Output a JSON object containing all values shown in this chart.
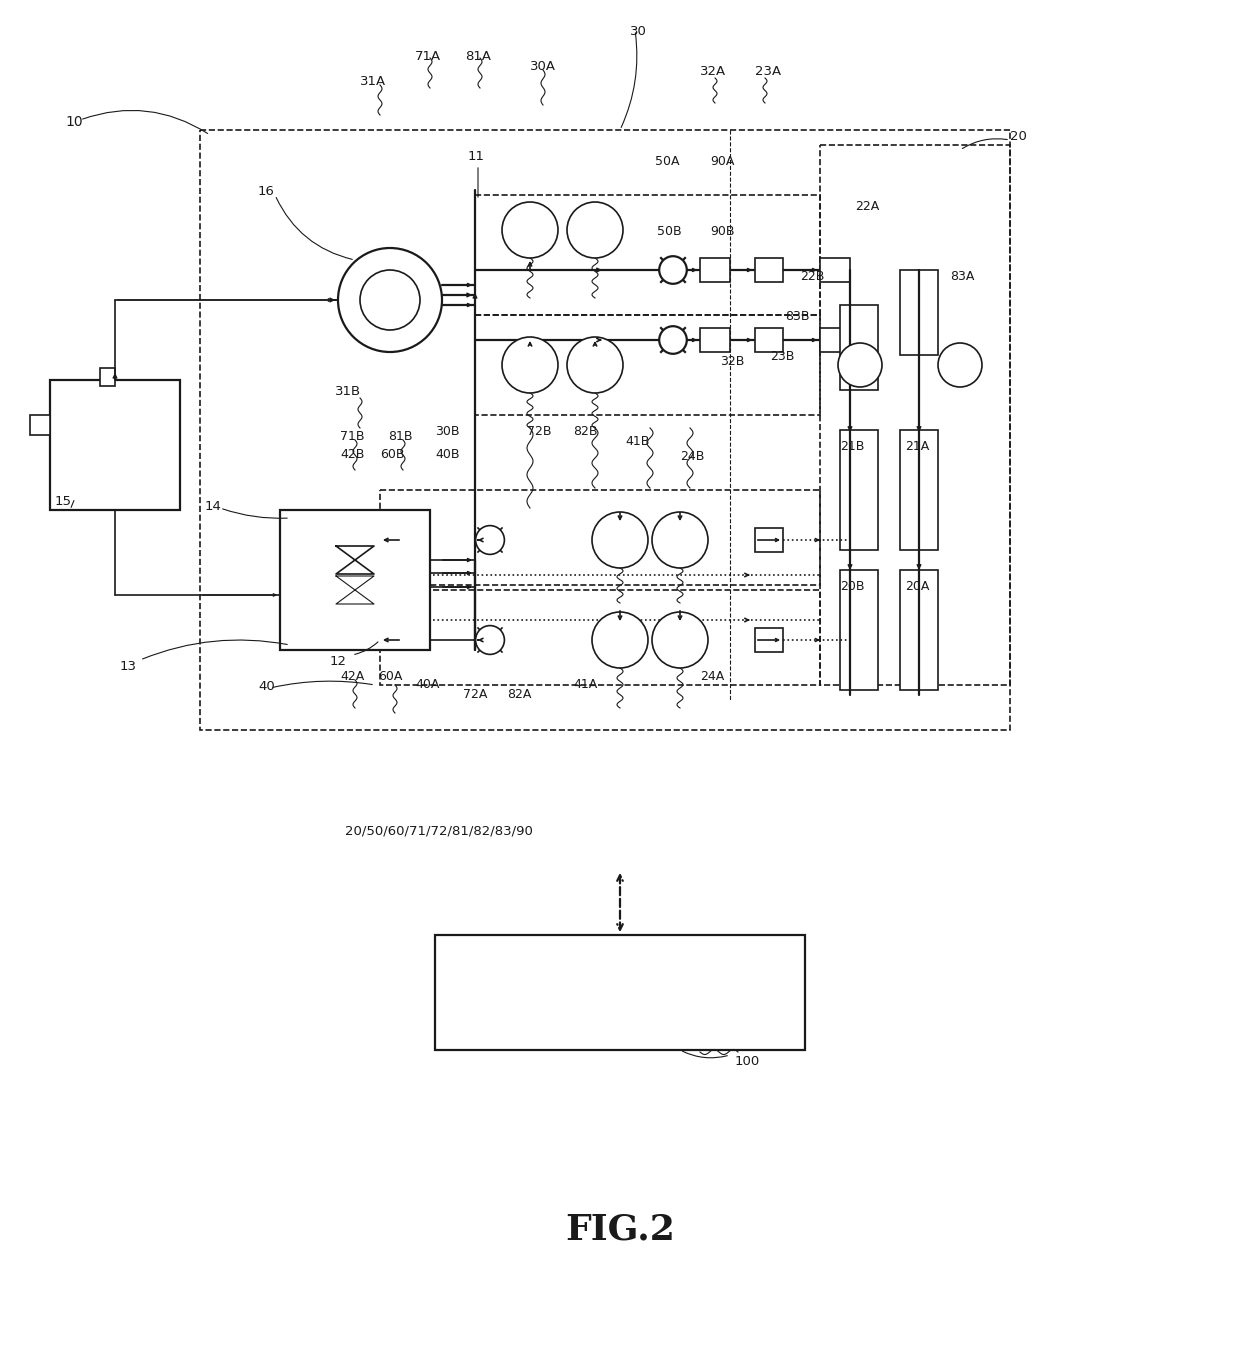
{
  "bg_color": "#ffffff",
  "line_color": "#1a1a1a",
  "fig_width": 12.4,
  "fig_height": 13.66,
  "fig_title": "FIG.2",
  "controller_label": "20/50/60/71/72/81/82/83/90",
  "controller_box_label": "100"
}
